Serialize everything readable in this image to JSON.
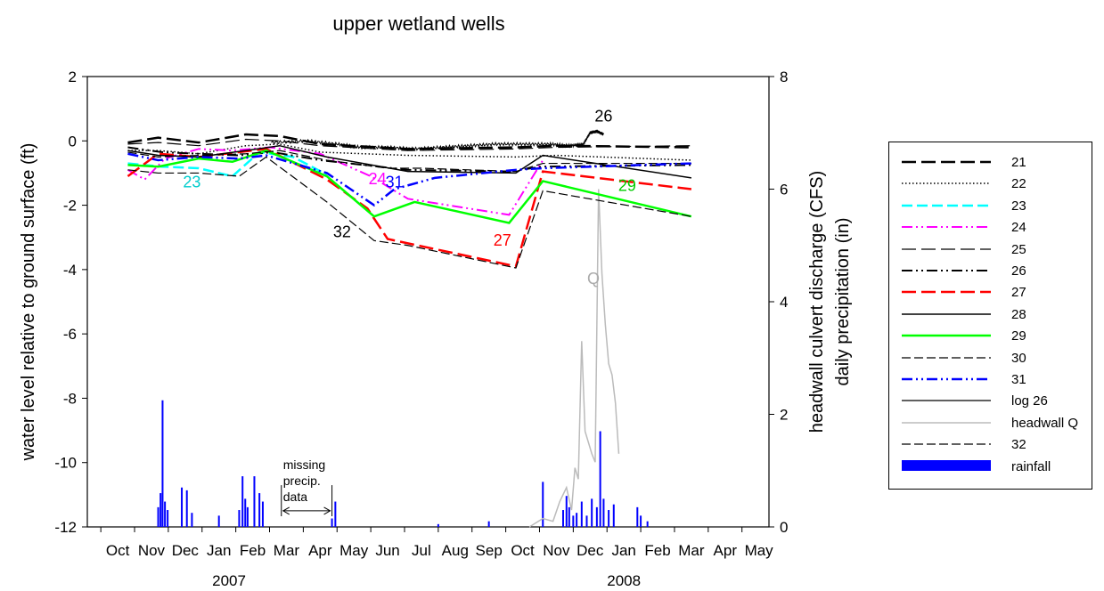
{
  "chart_data": {
    "type": "line",
    "title": "upper wetland wells",
    "ylabel": "water level relative to ground surface (ft)",
    "y2label_lines": [
      "headwall culvert discharge (CFS)",
      "daily precipitation (in)"
    ],
    "ylim": [
      -12,
      2
    ],
    "y2lim": [
      0,
      8
    ],
    "y_ticks": [
      "2",
      "0",
      "-2",
      "-4",
      "-6",
      "-8",
      "-10",
      "-12"
    ],
    "y2_ticks": [
      "8",
      "6",
      "4",
      "2",
      "0"
    ],
    "x_month_labels": [
      "Oct",
      "Nov",
      "Dec",
      "Jan",
      "Feb",
      "Mar",
      "Apr",
      "May",
      "Jun",
      "Jul",
      "Aug",
      "Sep",
      "Oct",
      "Nov",
      "Dec",
      "Jan",
      "Feb",
      "Mar",
      "Apr",
      "May"
    ],
    "x_year_labels": [
      "2007",
      "2008"
    ],
    "legend": [
      "21",
      "22",
      "23",
      "24",
      "25",
      "26",
      "27",
      "28",
      "29",
      "30",
      "31",
      "log 26",
      "headwall Q",
      "32",
      "rainfall"
    ],
    "colors": {
      "21": "#000000",
      "22": "#000000",
      "23": "#00ffff",
      "24": "#ff00ff",
      "25": "#000000",
      "26": "#000000",
      "27": "#ff0000",
      "28": "#000000",
      "29": "#00ff00",
      "30": "#000000",
      "31": "#0000ff",
      "log 26": "#000000",
      "headwall Q": "#bbbbbb",
      "32": "#000000",
      "rainfall": "#0000ff"
    },
    "annotations": [
      {
        "text": "26",
        "x": 14.4,
        "y": 0.6,
        "color": "#000000"
      },
      {
        "text": "23",
        "x": 2.2,
        "y": -1.45,
        "color": "#00cccc"
      },
      {
        "text": "24",
        "x": 7.7,
        "y": -1.35,
        "color": "#ff00ff"
      },
      {
        "text": "31",
        "x": 8.2,
        "y": -1.45,
        "color": "#0000ff"
      },
      {
        "text": "32",
        "x": 6.65,
        "y": -3.0,
        "color": "#000000"
      },
      {
        "text": "27",
        "x": 11.4,
        "y": -3.25,
        "color": "#ff0000"
      },
      {
        "text": "29",
        "x": 15.1,
        "y": -1.55,
        "color": "#00cc00"
      },
      {
        "text": "Q",
        "x": 14.1,
        "y": -4.45,
        "color": "#aaaaaa"
      }
    ],
    "missing_data_label": [
      "missing",
      "precip.",
      "data"
    ],
    "missing_data_range": [
      4.85,
      6.35
    ],
    "series": [
      {
        "name": "21",
        "x": [
          0.3,
          1.2,
          2.4,
          3.8,
          4.8,
          6.0,
          8.6,
          11.8,
          13.0,
          17.0
        ],
        "y": [
          -0.05,
          0.1,
          -0.05,
          0.2,
          0.15,
          -0.1,
          -0.25,
          -0.2,
          -0.15,
          -0.2
        ]
      },
      {
        "name": "22",
        "x": [
          0.3,
          1.2,
          2.4,
          3.8,
          4.8,
          6.0,
          8.6,
          11.8,
          13.0,
          17.0
        ],
        "y": [
          -0.3,
          -0.3,
          -0.4,
          -0.15,
          -0.1,
          -0.35,
          -0.45,
          -0.5,
          -0.45,
          -0.6
        ]
      },
      {
        "name": "23",
        "x": [
          0.3,
          1.3,
          2.4,
          3.4,
          4.2,
          5.2,
          6.2
        ],
        "y": [
          -0.7,
          -0.8,
          -0.85,
          -1.1,
          -0.35,
          -0.5,
          -1.05
        ]
      },
      {
        "name": "24",
        "x": [
          0.3,
          0.8,
          1.4,
          2.4,
          3.4,
          4.5,
          6.0,
          7.5,
          8.6,
          11.6,
          12.6
        ],
        "y": [
          -0.9,
          -1.2,
          -0.55,
          -0.25,
          -0.3,
          -0.2,
          -0.4,
          -1.1,
          -1.8,
          -2.3,
          -0.6
        ]
      },
      {
        "name": "25",
        "x": [
          0.3,
          1.2,
          2.4,
          3.8,
          4.8,
          6.0,
          8.6,
          11.8,
          13.0,
          17.0
        ],
        "y": [
          -0.1,
          -0.05,
          -0.15,
          0.05,
          0.0,
          -0.15,
          -0.3,
          -0.25,
          -0.2,
          -0.15
        ]
      },
      {
        "name": "26",
        "x": [
          0.3,
          1.3,
          2.4,
          3.6,
          4.6,
          6.0,
          7.3,
          8.6,
          11.6,
          12.6,
          17.0
        ],
        "y": [
          -0.2,
          -0.35,
          -0.4,
          -0.45,
          -0.35,
          -0.6,
          -0.75,
          -0.9,
          -0.95,
          -0.8,
          -0.75
        ]
      },
      {
        "name": "27",
        "x": [
          0.3,
          1.2,
          2.4,
          3.6,
          4.4,
          6.2,
          7.4,
          8.0,
          11.8,
          12.6,
          17.0
        ],
        "y": [
          -1.1,
          -0.4,
          -0.5,
          -0.35,
          -0.25,
          -1.2,
          -2.1,
          -3.05,
          -3.9,
          -0.95,
          -1.5
        ]
      },
      {
        "name": "28",
        "x": [
          0.3,
          1.2,
          2.4,
          3.8,
          4.8,
          6.2,
          8.6,
          11.8,
          12.6,
          17.0
        ],
        "y": [
          -0.3,
          -0.45,
          -0.5,
          -0.3,
          -0.15,
          -0.5,
          -0.95,
          -1.0,
          -0.45,
          -1.15
        ]
      },
      {
        "name": "29",
        "x": [
          0.3,
          1.2,
          2.4,
          3.4,
          4.4,
          6.2,
          7.6,
          8.8,
          11.6,
          12.6,
          17.0
        ],
        "y": [
          -0.75,
          -0.8,
          -0.55,
          -0.65,
          -0.3,
          -1.1,
          -2.35,
          -1.9,
          -2.55,
          -1.25,
          -2.35
        ]
      },
      {
        "name": "30",
        "x": [
          0.3,
          1.2,
          2.4,
          3.8,
          4.8,
          6.2,
          8.0,
          9.0,
          11.8,
          12.6,
          17.0
        ],
        "y": [
          -0.35,
          -0.5,
          -0.45,
          -0.4,
          -0.3,
          -0.6,
          -0.85,
          -0.85,
          -0.95,
          -0.7,
          -0.7
        ]
      },
      {
        "name": "31",
        "x": [
          0.3,
          1.2,
          2.4,
          3.6,
          4.4,
          6.2,
          7.6,
          8.2,
          9.4,
          11.8,
          12.6,
          17.0
        ],
        "y": [
          -0.4,
          -0.6,
          -0.5,
          -0.55,
          -0.45,
          -1.0,
          -2.0,
          -1.5,
          -1.15,
          -0.9,
          -0.85,
          -0.7
        ]
      },
      {
        "name": "32",
        "x": [
          0.3,
          1.2,
          2.4,
          3.6,
          4.4,
          6.2,
          7.6,
          8.6,
          11.8,
          12.6,
          17.0
        ],
        "y": [
          -0.9,
          -1.0,
          -1.0,
          -1.1,
          -0.5,
          -1.9,
          -3.1,
          -3.25,
          -3.95,
          -1.55,
          -2.35
        ]
      }
    ],
    "log26": {
      "name": "log 26",
      "x_start": 4.55,
      "x_end": 14.4,
      "x": [
        4.55,
        5.6,
        6.5,
        7.2,
        8.0,
        8.8,
        9.6,
        10.4,
        11.2,
        12.0,
        12.8,
        13.4,
        13.8,
        14.0,
        14.2,
        14.4
      ],
      "y": [
        -0.05,
        0.0,
        -0.1,
        -0.2,
        -0.2,
        -0.25,
        -0.2,
        -0.15,
        -0.1,
        -0.1,
        -0.1,
        -0.15,
        -0.1,
        0.25,
        0.3,
        0.2
      ]
    },
    "headwall_q": {
      "name": "headwall Q",
      "x": [
        12.2,
        12.6,
        12.9,
        13.1,
        13.3,
        13.45,
        13.55,
        13.65,
        13.75,
        13.85,
        13.95,
        14.05,
        14.15,
        14.25,
        14.35,
        14.45,
        14.55,
        14.65,
        14.75,
        14.85
      ],
      "y2": [
        0.0,
        0.15,
        0.1,
        0.45,
        0.7,
        0.3,
        1.05,
        0.85,
        3.3,
        1.7,
        1.5,
        1.3,
        1.15,
        6.0,
        4.5,
        3.6,
        2.9,
        2.7,
        2.2,
        1.3
      ]
    },
    "rainfall": {
      "name": "rainfall",
      "x": [
        1.2,
        1.27,
        1.33,
        1.4,
        1.48,
        1.9,
        2.05,
        2.2,
        3.0,
        3.6,
        3.7,
        3.78,
        3.85,
        4.05,
        4.2,
        4.3,
        6.35,
        6.45,
        9.5,
        11.0,
        12.6,
        13.2,
        13.3,
        13.38,
        13.5,
        13.6,
        13.75,
        13.9,
        14.05,
        14.2,
        14.3,
        14.4,
        14.55,
        14.7,
        15.4,
        15.5,
        15.7
      ],
      "y2": [
        0.35,
        0.6,
        2.25,
        0.45,
        0.3,
        0.7,
        0.65,
        0.25,
        0.2,
        0.3,
        0.9,
        0.5,
        0.35,
        0.9,
        0.6,
        0.45,
        0.15,
        0.45,
        0.05,
        0.1,
        0.8,
        0.3,
        0.55,
        0.35,
        0.2,
        0.25,
        0.45,
        0.2,
        0.5,
        0.35,
        1.7,
        0.5,
        0.3,
        0.4,
        0.35,
        0.2,
        0.1
      ]
    }
  }
}
